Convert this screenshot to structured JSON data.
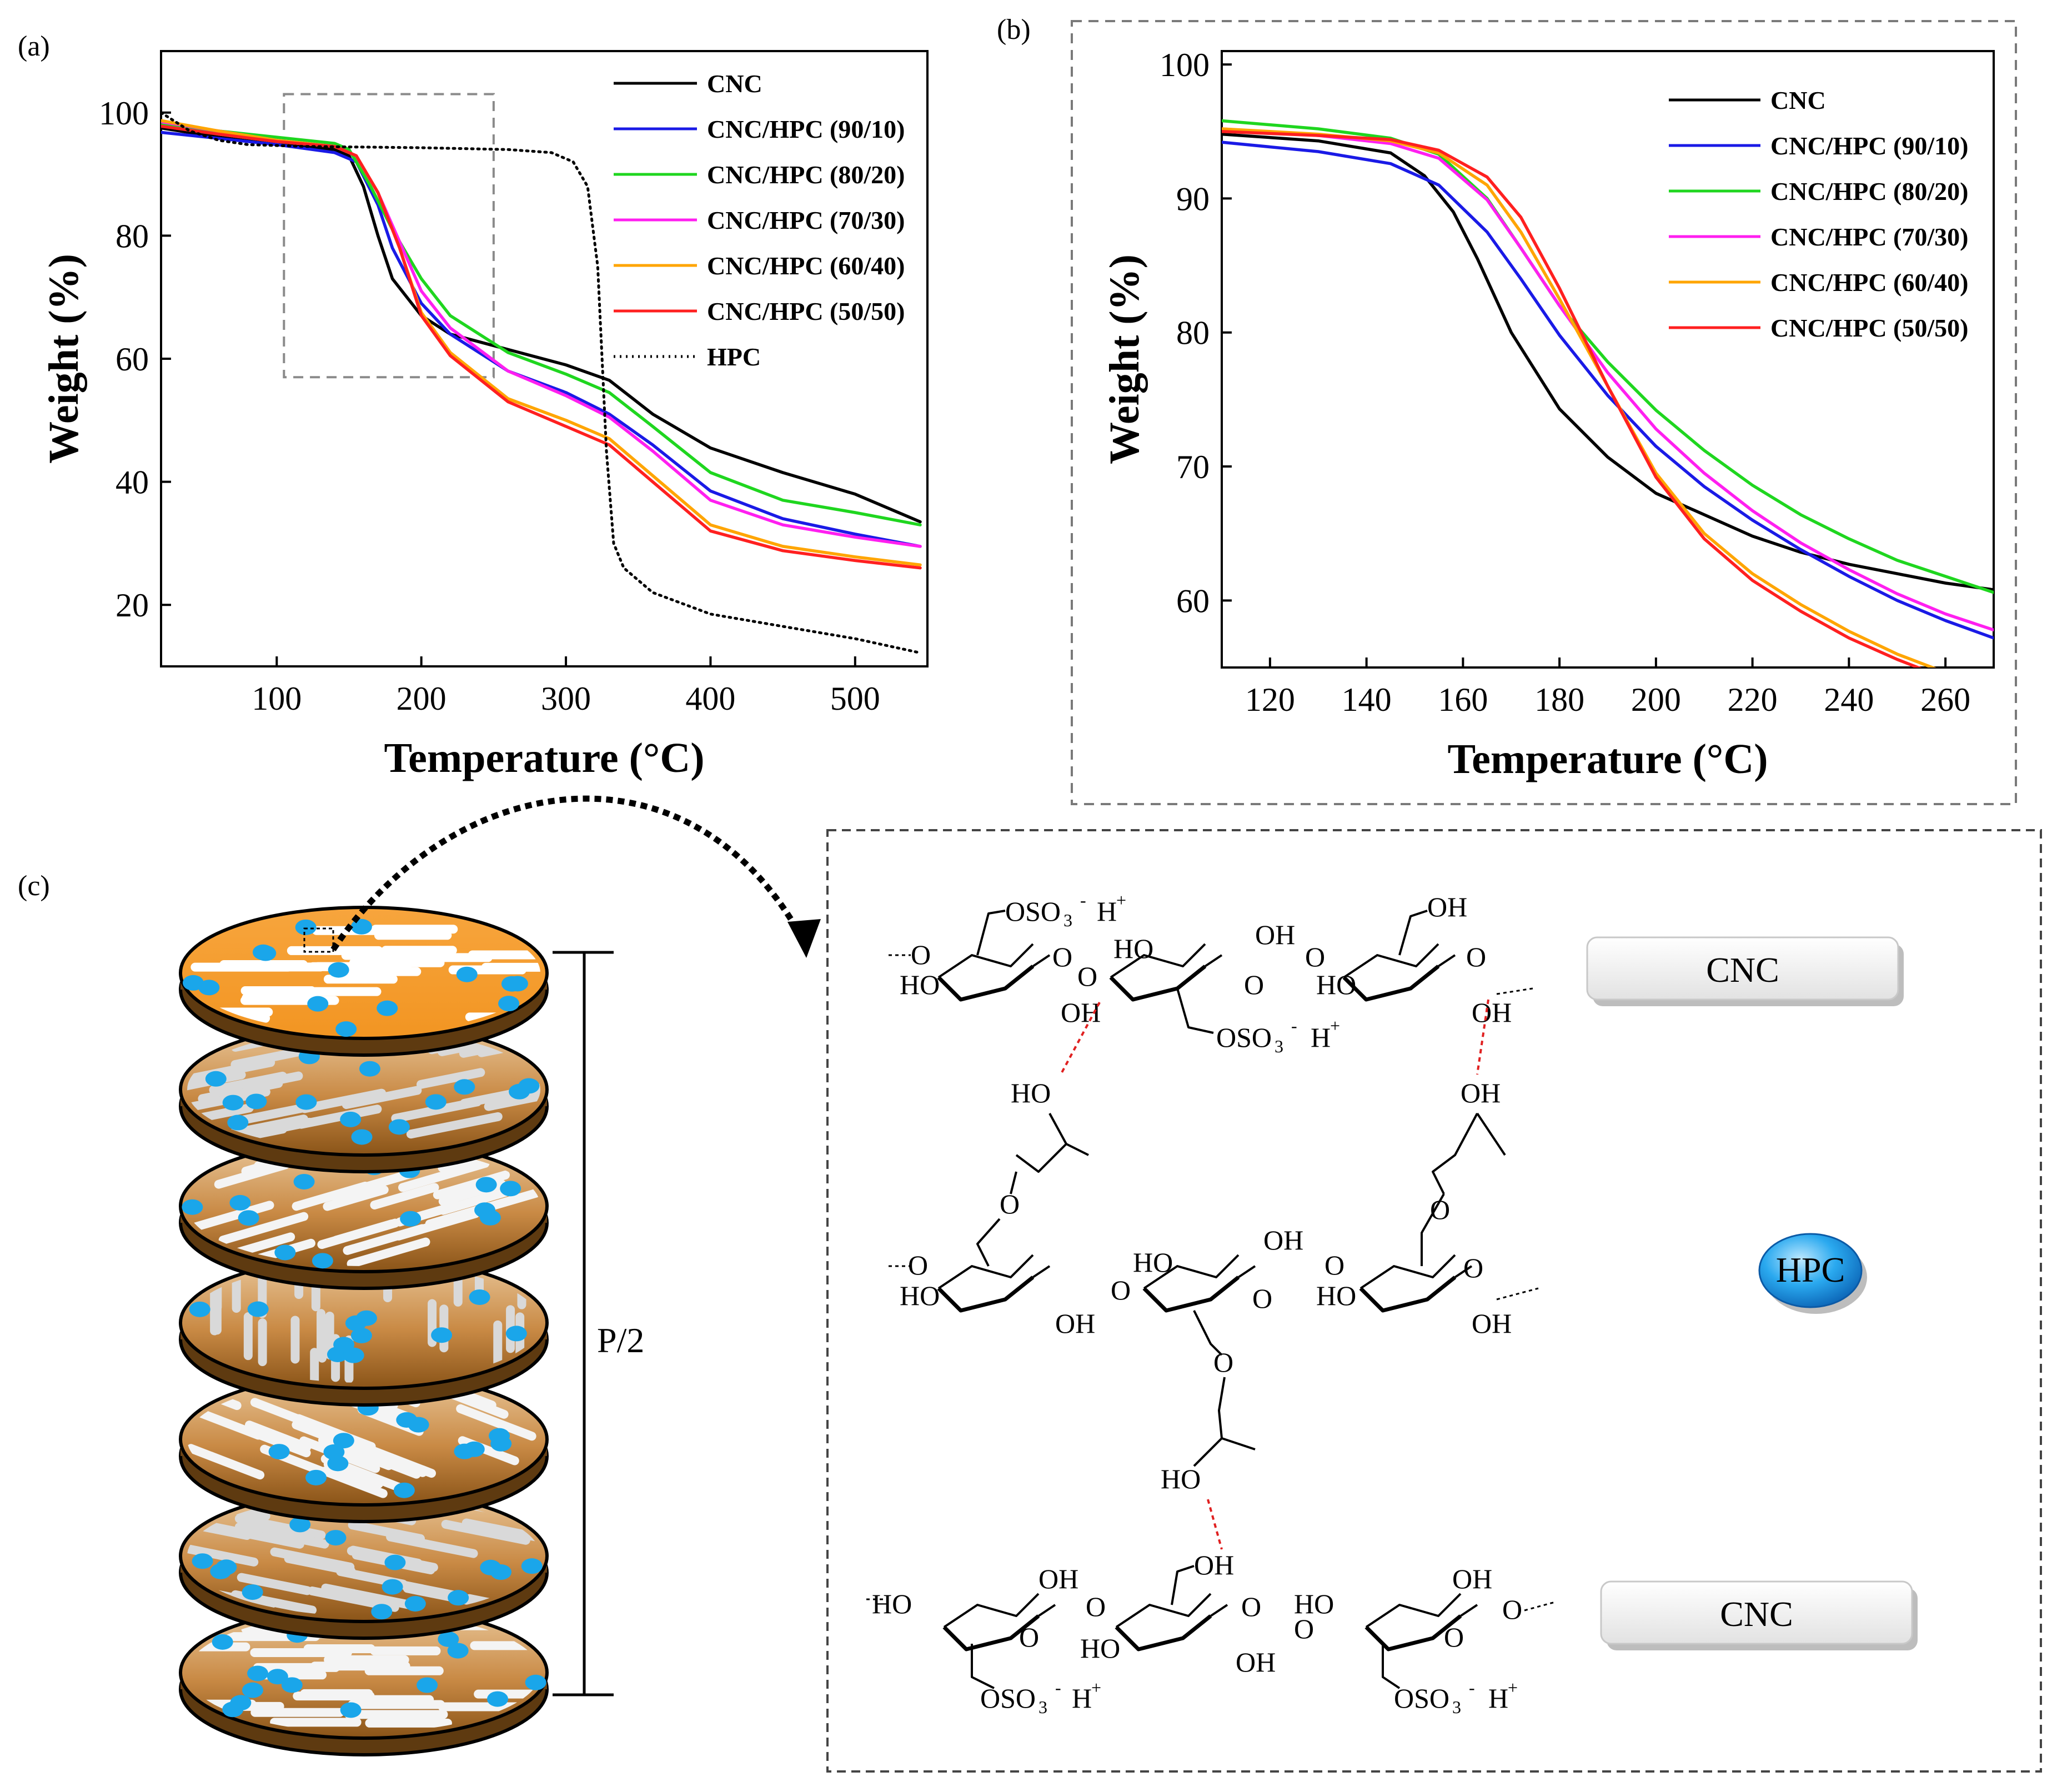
{
  "panel_labels": {
    "a": "(a)",
    "b": "(b)",
    "c": "(c)"
  },
  "chart_data": [
    {
      "type": "line",
      "panel": "(a)",
      "xlabel": "Temperature (°C)",
      "ylabel": "Weight (%)",
      "xlim": [
        20,
        550
      ],
      "ylim": [
        10,
        110
      ],
      "x_ticks": [
        100,
        200,
        300,
        400,
        500
      ],
      "y_ticks": [
        20,
        40,
        60,
        80,
        100
      ],
      "zoom_region": {
        "x": [
          105,
          250
        ],
        "y": [
          57,
          103
        ]
      },
      "legend_position": "top-right",
      "series": [
        {
          "name": "CNC",
          "color": "#000000",
          "dash": "solid",
          "points": [
            [
              20,
              97.5
            ],
            [
              60,
              96
            ],
            [
              100,
              94.8
            ],
            [
              140,
              94
            ],
            [
              150,
              93
            ],
            [
              160,
              88
            ],
            [
              170,
              80
            ],
            [
              180,
              73
            ],
            [
              200,
              67
            ],
            [
              220,
              64
            ],
            [
              260,
              61.5
            ],
            [
              300,
              59
            ],
            [
              330,
              56.5
            ],
            [
              360,
              51
            ],
            [
              400,
              45.5
            ],
            [
              450,
              41.5
            ],
            [
              500,
              38
            ],
            [
              545,
              33.5
            ]
          ]
        },
        {
          "name": "CNC/HPC (90/10)",
          "color": "#1a1ae6",
          "dash": "solid",
          "points": [
            [
              20,
              96.8
            ],
            [
              60,
              95.8
            ],
            [
              100,
              94.8
            ],
            [
              140,
              93.5
            ],
            [
              155,
              92
            ],
            [
              170,
              85
            ],
            [
              180,
              78
            ],
            [
              200,
              69
            ],
            [
              220,
              64
            ],
            [
              260,
              58
            ],
            [
              300,
              54.5
            ],
            [
              330,
              51
            ],
            [
              360,
              46
            ],
            [
              400,
              38.5
            ],
            [
              450,
              34
            ],
            [
              500,
              31.5
            ],
            [
              545,
              29.5
            ]
          ]
        },
        {
          "name": "CNC/HPC (80/20)",
          "color": "#1fd61f",
          "dash": "solid",
          "points": [
            [
              20,
              98
            ],
            [
              60,
              97
            ],
            [
              100,
              96
            ],
            [
              140,
              95
            ],
            [
              150,
              94
            ],
            [
              165,
              88
            ],
            [
              180,
              81
            ],
            [
              200,
              73
            ],
            [
              220,
              67
            ],
            [
              260,
              61
            ],
            [
              300,
              57.5
            ],
            [
              330,
              54.5
            ],
            [
              360,
              49
            ],
            [
              400,
              41.5
            ],
            [
              450,
              37
            ],
            [
              500,
              35
            ],
            [
              545,
              33
            ]
          ]
        },
        {
          "name": "CNC/HPC (70/30)",
          "color": "#ff1ff0",
          "dash": "solid",
          "points": [
            [
              20,
              98.5
            ],
            [
              60,
              97
            ],
            [
              100,
              95.5
            ],
            [
              140,
              94.5
            ],
            [
              155,
              93
            ],
            [
              170,
              87
            ],
            [
              185,
              79
            ],
            [
              200,
              71
            ],
            [
              220,
              65
            ],
            [
              260,
              58
            ],
            [
              300,
              54
            ],
            [
              330,
              50.5
            ],
            [
              360,
              45
            ],
            [
              400,
              37
            ],
            [
              450,
              33
            ],
            [
              500,
              31
            ],
            [
              545,
              29.5
            ]
          ]
        },
        {
          "name": "CNC/HPC (60/40)",
          "color": "#ffa500",
          "dash": "solid",
          "points": [
            [
              20,
              98.7
            ],
            [
              60,
              97
            ],
            [
              100,
              95.5
            ],
            [
              140,
              94.5
            ],
            [
              155,
              93
            ],
            [
              170,
              87
            ],
            [
              185,
              78
            ],
            [
              200,
              67.5
            ],
            [
              220,
              61
            ],
            [
              260,
              53.5
            ],
            [
              300,
              50
            ],
            [
              330,
              47
            ],
            [
              360,
              41
            ],
            [
              400,
              33
            ],
            [
              450,
              29.5
            ],
            [
              500,
              27.8
            ],
            [
              545,
              26.5
            ]
          ]
        },
        {
          "name": "CNC/HPC (50/50)",
          "color": "#ff2020",
          "dash": "solid",
          "points": [
            [
              20,
              97.8
            ],
            [
              60,
              96.5
            ],
            [
              100,
              95.3
            ],
            [
              140,
              94.5
            ],
            [
              155,
              93
            ],
            [
              170,
              87
            ],
            [
              185,
              78
            ],
            [
              200,
              67
            ],
            [
              220,
              60.5
            ],
            [
              260,
              53
            ],
            [
              300,
              49
            ],
            [
              330,
              46
            ],
            [
              360,
              40
            ],
            [
              400,
              32
            ],
            [
              450,
              28.8
            ],
            [
              500,
              27.2
            ],
            [
              545,
              26
            ]
          ]
        },
        {
          "name": "HPC",
          "color": "#000000",
          "dash": "dotted",
          "points": [
            [
              20,
              100
            ],
            [
              40,
              97
            ],
            [
              60,
              95.5
            ],
            [
              80,
              94.8
            ],
            [
              120,
              94.5
            ],
            [
              200,
              94.3
            ],
            [
              260,
              94
            ],
            [
              290,
              93.5
            ],
            [
              305,
              92
            ],
            [
              315,
              88
            ],
            [
              322,
              75
            ],
            [
              328,
              45
            ],
            [
              333,
              30
            ],
            [
              340,
              26
            ],
            [
              360,
              22
            ],
            [
              400,
              18.5
            ],
            [
              450,
              16.5
            ],
            [
              500,
              14.5
            ],
            [
              545,
              12.2
            ]
          ]
        }
      ]
    },
    {
      "type": "line",
      "panel": "(b)",
      "xlabel": "Temperature (°C)",
      "ylabel": "Weight (%)",
      "xlim": [
        110,
        270
      ],
      "ylim": [
        55,
        101
      ],
      "x_ticks": [
        120,
        140,
        160,
        180,
        200,
        220,
        240,
        260
      ],
      "y_ticks": [
        60,
        70,
        80,
        90,
        100
      ],
      "legend_position": "top-right",
      "series": [
        {
          "name": "CNC",
          "color": "#000000",
          "dash": "solid",
          "points": [
            [
              110,
              94.8
            ],
            [
              130,
              94.3
            ],
            [
              145,
              93.4
            ],
            [
              152,
              91.7
            ],
            [
              158,
              89
            ],
            [
              163,
              85.5
            ],
            [
              170,
              80
            ],
            [
              180,
              74.3
            ],
            [
              190,
              70.7
            ],
            [
              200,
              68
            ],
            [
              210,
              66.4
            ],
            [
              220,
              64.8
            ],
            [
              230,
              63.6
            ],
            [
              240,
              62.7
            ],
            [
              250,
              62
            ],
            [
              260,
              61.3
            ],
            [
              270,
              60.8
            ]
          ]
        },
        {
          "name": "CNC/HPC (90/10)",
          "color": "#1a1ae6",
          "dash": "solid",
          "points": [
            [
              110,
              94.2
            ],
            [
              130,
              93.5
            ],
            [
              145,
              92.6
            ],
            [
              155,
              91
            ],
            [
              165,
              87.5
            ],
            [
              172,
              84
            ],
            [
              180,
              79.8
            ],
            [
              190,
              75.3
            ],
            [
              200,
              71.5
            ],
            [
              210,
              68.5
            ],
            [
              220,
              66
            ],
            [
              230,
              63.8
            ],
            [
              240,
              61.8
            ],
            [
              250,
              60
            ],
            [
              260,
              58.5
            ],
            [
              270,
              57.2
            ]
          ]
        },
        {
          "name": "CNC/HPC (80/20)",
          "color": "#1fd61f",
          "dash": "solid",
          "points": [
            [
              110,
              95.8
            ],
            [
              130,
              95.2
            ],
            [
              145,
              94.5
            ],
            [
              155,
              93.3
            ],
            [
              165,
              90
            ],
            [
              172,
              86.3
            ],
            [
              180,
              82
            ],
            [
              190,
              77.8
            ],
            [
              200,
              74.2
            ],
            [
              210,
              71.2
            ],
            [
              220,
              68.6
            ],
            [
              230,
              66.4
            ],
            [
              240,
              64.6
            ],
            [
              250,
              63
            ],
            [
              260,
              61.8
            ],
            [
              270,
              60.6
            ]
          ]
        },
        {
          "name": "CNC/HPC (70/30)",
          "color": "#ff1ff0",
          "dash": "solid",
          "points": [
            [
              110,
              95.2
            ],
            [
              130,
              94.7
            ],
            [
              145,
              94.1
            ],
            [
              155,
              93
            ],
            [
              165,
              89.9
            ],
            [
              172,
              86.3
            ],
            [
              180,
              82
            ],
            [
              190,
              77
            ],
            [
              200,
              72.8
            ],
            [
              210,
              69.5
            ],
            [
              220,
              66.7
            ],
            [
              230,
              64.3
            ],
            [
              240,
              62.3
            ],
            [
              250,
              60.5
            ],
            [
              260,
              59
            ],
            [
              270,
              57.8
            ]
          ]
        },
        {
          "name": "CNC/HPC (60/40)",
          "color": "#ffa500",
          "dash": "solid",
          "points": [
            [
              110,
              95.2
            ],
            [
              130,
              94.8
            ],
            [
              145,
              94.3
            ],
            [
              155,
              93.4
            ],
            [
              165,
              91
            ],
            [
              172,
              87.5
            ],
            [
              180,
              82.5
            ],
            [
              190,
              76
            ],
            [
              200,
              69.5
            ],
            [
              210,
              65
            ],
            [
              220,
              62
            ],
            [
              230,
              59.7
            ],
            [
              240,
              57.7
            ],
            [
              250,
              56
            ],
            [
              258,
              54.9
            ]
          ]
        },
        {
          "name": "CNC/HPC (50/50)",
          "color": "#ff2020",
          "dash": "solid",
          "points": [
            [
              110,
              95
            ],
            [
              130,
              94.7
            ],
            [
              145,
              94.4
            ],
            [
              155,
              93.6
            ],
            [
              165,
              91.6
            ],
            [
              172,
              88.6
            ],
            [
              180,
              83.3
            ],
            [
              190,
              76
            ],
            [
              200,
              69.2
            ],
            [
              210,
              64.6
            ],
            [
              220,
              61.5
            ],
            [
              230,
              59.2
            ],
            [
              240,
              57.2
            ],
            [
              250,
              55.6
            ],
            [
              255,
              54.9
            ]
          ]
        }
      ]
    }
  ],
  "panel_c": {
    "stack_label": "P/2",
    "legend_cnc_top": "CNC",
    "legend_cnc_bottom": "CNC",
    "legend_hpc": "HPC",
    "layer_count": 7
  },
  "chem": {
    "row1": {
      "oso3_h_top": "OSO",
      "sub3": "3",
      "sup_minus": "-",
      "h_plus": "H",
      "sup_plus": "+",
      "ho_1": "HO",
      "o_1": "O",
      "oh_1": "OH",
      "o_link1": "O",
      "ho_2": "HO",
      "oh_2": "OH",
      "o_ring2": "O",
      "oso3_mid": "OSO",
      "o_link2": "O",
      "oh_3": "OH",
      "ho_3": "HO",
      "o_3": "O",
      "oh_4": "OH",
      "oh_5": "OH"
    },
    "linker": {
      "ho_left": "HO",
      "oh_right": "OH",
      "o_left": "O",
      "o_right": "O",
      "o_bottom": "O",
      "ho_bottom": "HO"
    },
    "row2": {
      "o_1": "O",
      "ho_1": "HO",
      "oh_1": "OH",
      "o_link1": "O",
      "ho_2": "HO",
      "oh_2": "OH",
      "o_ring2": "O",
      "o_link2": "O",
      "ho_3": "HO",
      "o_3": "O",
      "oh_3": "OH"
    },
    "row3": {
      "ho_1": "HO",
      "oh_1": "OH",
      "o_ring1": "O",
      "o_link1": "O",
      "oh_top": "OH",
      "ho_2": "HO",
      "o_ring2": "O",
      "oh_2": "OH",
      "o_link2": "O",
      "ho_3": "HO",
      "oh_3": "OH",
      "o_ring3": "O",
      "o_end": "O",
      "oso3_left": "OSO",
      "oso3_right": "OSO"
    }
  }
}
